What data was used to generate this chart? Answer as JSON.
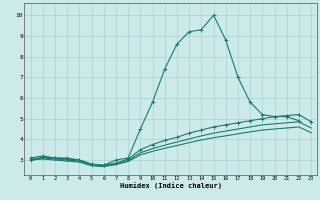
{
  "xlabel": "Humidex (Indice chaleur)",
  "bg_color": "#cceae8",
  "grid_color": "#aad4d2",
  "line_color": "#1a7a6e",
  "x_values": [
    0,
    1,
    2,
    3,
    4,
    5,
    6,
    7,
    8,
    9,
    10,
    11,
    12,
    13,
    14,
    15,
    16,
    17,
    18,
    19,
    20,
    21,
    22,
    23
  ],
  "series1": [
    3.1,
    3.2,
    3.1,
    3.1,
    3.0,
    2.8,
    2.75,
    3.0,
    3.1,
    4.5,
    5.8,
    7.4,
    8.6,
    9.2,
    9.3,
    10.0,
    8.8,
    7.0,
    5.8,
    5.2,
    5.1,
    5.1,
    4.9,
    null
  ],
  "series2": [
    3.0,
    3.15,
    3.1,
    3.05,
    3.0,
    2.8,
    2.75,
    2.85,
    3.05,
    3.5,
    3.75,
    3.95,
    4.1,
    4.3,
    4.45,
    4.6,
    4.7,
    4.8,
    4.9,
    5.0,
    5.1,
    5.15,
    5.2,
    4.85
  ],
  "series3": [
    3.0,
    3.1,
    3.05,
    3.0,
    2.95,
    2.78,
    2.72,
    2.82,
    2.98,
    3.35,
    3.55,
    3.72,
    3.87,
    4.02,
    4.17,
    4.3,
    4.4,
    4.5,
    4.6,
    4.7,
    4.75,
    4.8,
    4.85,
    4.55
  ],
  "series4": [
    3.0,
    3.05,
    3.0,
    2.95,
    2.9,
    2.72,
    2.68,
    2.78,
    2.93,
    3.25,
    3.42,
    3.57,
    3.7,
    3.84,
    3.97,
    4.08,
    4.17,
    4.27,
    4.36,
    4.45,
    4.5,
    4.55,
    4.6,
    4.32
  ],
  "xlim": [
    -0.5,
    23.5
  ],
  "ylim": [
    2.3,
    10.6
  ],
  "yticks": [
    3,
    4,
    5,
    6,
    7,
    8,
    9,
    10
  ],
  "xticks": [
    0,
    1,
    2,
    3,
    4,
    5,
    6,
    7,
    8,
    9,
    10,
    11,
    12,
    13,
    14,
    15,
    16,
    17,
    18,
    19,
    20,
    21,
    22,
    23
  ]
}
